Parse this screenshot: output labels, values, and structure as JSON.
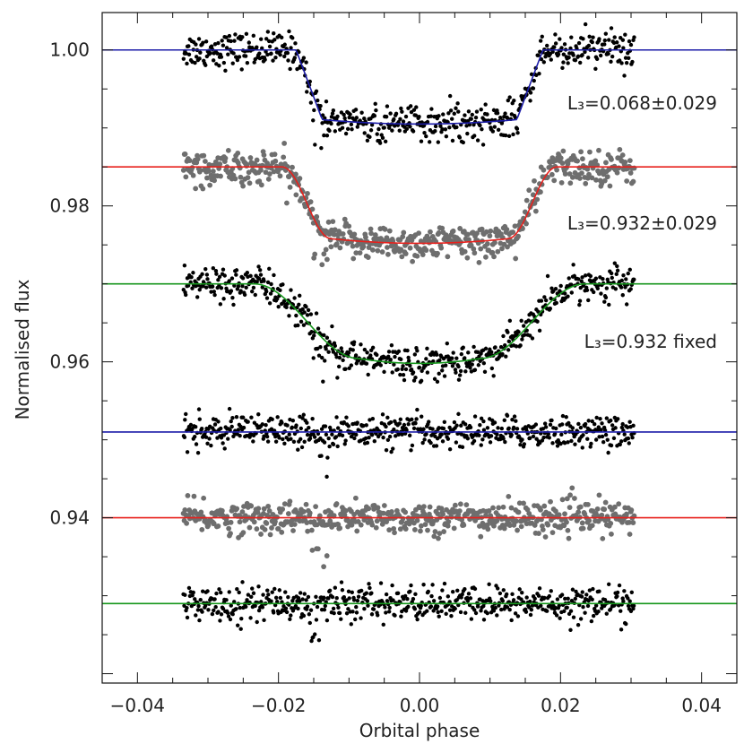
{
  "chart_data": {
    "type": "scatter",
    "xlabel": "Orbital phase",
    "ylabel": "Normalised flux",
    "xlim": [
      -0.045,
      0.045
    ],
    "ylim": [
      0.9188,
      1.0048
    ],
    "x_ticks": [
      -0.04,
      -0.02,
      0.0,
      0.02,
      0.04
    ],
    "x_tick_labels": [
      "−0.04",
      "−0.02",
      "0.00",
      "0.02",
      "0.04"
    ],
    "y_ticks": [
      0.94,
      0.96,
      0.98,
      1.0
    ],
    "y_tick_labels": [
      "0.94",
      "0.96",
      "0.98",
      "1.00"
    ],
    "phase_range": [
      -0.0335,
      0.0305
    ],
    "series": [
      {
        "name": "model fit L3=0.068",
        "kind": "transit",
        "baseline": 1.0,
        "depth": 0.0095,
        "t1": 0.0175,
        "t2": 0.0138,
        "ingress_shape": "sharp",
        "scatter": 0.0011,
        "model_color": "#1c1ca8",
        "point_color": "#000000",
        "label": "L₃=0.068±0.029"
      },
      {
        "name": "model fit L3=0.932",
        "kind": "transit",
        "baseline": 0.985,
        "depth": 0.0098,
        "t1": 0.0195,
        "t2": 0.0125,
        "ingress_shape": "curved",
        "scatter": 0.0011,
        "model_color": "#e8201c",
        "point_color": "#6e6e6e",
        "label": "L₃=0.932±0.029"
      },
      {
        "name": "model fit L3=0.932 fixed",
        "kind": "transit",
        "baseline": 0.97,
        "depth": 0.0102,
        "t1": 0.0235,
        "t2": 0.0085,
        "ingress_shape": "curved",
        "scatter": 0.0011,
        "model_color": "#16961c",
        "point_color": "#000000",
        "label": "L₃=0.932 fixed"
      },
      {
        "name": "residuals L3=0.068",
        "kind": "residual",
        "baseline": 0.951,
        "scatter": 0.001,
        "model_color": "#1c1ca8",
        "point_color": "#000000"
      },
      {
        "name": "residuals L3=0.932",
        "kind": "residual",
        "baseline": 0.94,
        "scatter": 0.001,
        "model_color": "#e8201c",
        "point_color": "#6e6e6e"
      },
      {
        "name": "residuals L3=0.932 fixed",
        "kind": "residual",
        "baseline": 0.929,
        "scatter": 0.0011,
        "model_color": "#16961c",
        "point_color": "#000000"
      }
    ]
  }
}
